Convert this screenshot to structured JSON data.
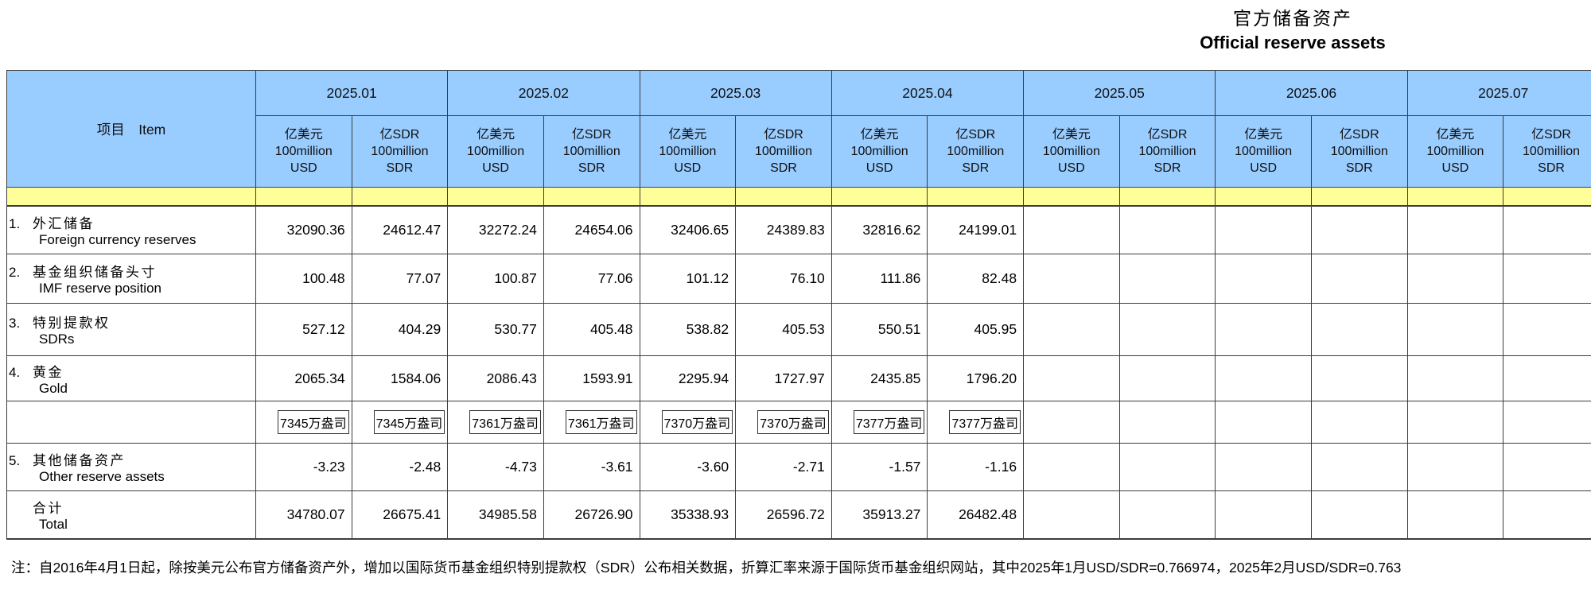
{
  "title": {
    "zh": "官方储备资产",
    "en": "Official reserve assets"
  },
  "colors": {
    "header_bg": "#99CCFF",
    "band_bg": "#FFFF99",
    "border": "#3C3C3C",
    "background": "#FFFFFF"
  },
  "chart_data": {
    "type": "table",
    "item_header": "项目　Item",
    "months": [
      "2025.01",
      "2025.02",
      "2025.03",
      "2025.04",
      "2025.05",
      "2025.06",
      "2025.07"
    ],
    "unit_headers": {
      "usd": "亿美元\n100million\nUSD",
      "sdr": "亿SDR\n100million\nSDR"
    },
    "rows": [
      {
        "num": "1.",
        "zh": "外汇储备",
        "en": "Foreign currency reserves",
        "values": [
          "32090.36",
          "24612.47",
          "32272.24",
          "24654.06",
          "32406.65",
          "24389.83",
          "32816.62",
          "24199.01",
          "",
          "",
          "",
          "",
          "",
          ""
        ]
      },
      {
        "num": "2.",
        "zh": "基金组织储备头寸",
        "en": "IMF reserve position",
        "values": [
          "100.48",
          "77.07",
          "100.87",
          "77.06",
          "101.12",
          "76.10",
          "111.86",
          "82.48",
          "",
          "",
          "",
          "",
          "",
          ""
        ]
      },
      {
        "num": "3.",
        "zh": "特别提款权",
        "en": "SDRs",
        "values": [
          "527.12",
          "404.29",
          "530.77",
          "405.48",
          "538.82",
          "405.53",
          "550.51",
          "405.95",
          "",
          "",
          "",
          "",
          "",
          ""
        ]
      },
      {
        "num": "4.",
        "zh": "黄金",
        "en": "Gold",
        "values": [
          "2065.34",
          "1584.06",
          "2086.43",
          "1593.91",
          "2295.94",
          "1727.97",
          "2435.85",
          "1796.20",
          "",
          "",
          "",
          "",
          "",
          ""
        ],
        "volume_row": [
          "7345万盎司",
          "7345万盎司",
          "7361万盎司",
          "7361万盎司",
          "7370万盎司",
          "7370万盎司",
          "7377万盎司",
          "7377万盎司",
          "",
          "",
          "",
          "",
          "",
          ""
        ]
      },
      {
        "num": "5.",
        "zh": "其他储备资产",
        "en": "Other reserve assets",
        "values": [
          "-3.23",
          "-2.48",
          "-4.73",
          "-3.61",
          "-3.60",
          "-2.71",
          "-1.57",
          "-1.16",
          "",
          "",
          "",
          "",
          "",
          ""
        ]
      },
      {
        "num": "",
        "zh": "合计",
        "en": "Total",
        "values": [
          "34780.07",
          "26675.41",
          "34985.58",
          "26726.90",
          "35338.93",
          "26596.72",
          "35913.27",
          "26482.48",
          "",
          "",
          "",
          "",
          "",
          ""
        ]
      }
    ]
  },
  "footnote": "注：自2016年4月1日起，除按美元公布官方储备资产外，增加以国际货币基金组织特别提款权（SDR）公布相关数据，折算汇率来源于国际货币基金组织网站，其中2025年1月USD/SDR=0.766974，2025年2月USD/SDR=0.763"
}
